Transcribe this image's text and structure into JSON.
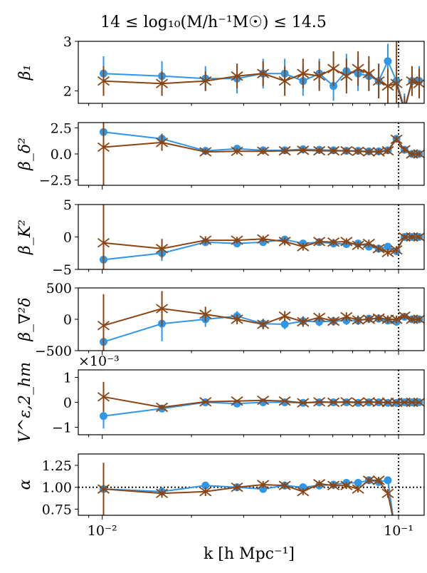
{
  "chart_data": {
    "title": "14 ≤ log₁₀(M/h⁻¹M☉) ≤ 14.5",
    "xlabel": "k [h Mpc⁻¹]",
    "xscale": "log",
    "xlim": [
      0.0083,
      0.122
    ],
    "x_ticks": [
      {
        "value": 0.01,
        "label": "10⁻²"
      },
      {
        "value": 0.1,
        "label": "10⁻¹"
      }
    ],
    "vline_x": 0.1,
    "series_styles": [
      {
        "name": "series A",
        "color": "#2f96e8",
        "marker": "circle"
      },
      {
        "name": "series B",
        "color": "#8b4513",
        "marker": "x"
      }
    ],
    "panels": [
      {
        "ylabel": "β₁",
        "ylim": [
          1.75,
          3.0
        ],
        "yticks": [
          {
            "v": 2,
            "l": "2"
          },
          {
            "v": 3,
            "l": "3"
          }
        ],
        "series": [
          {
            "name": "series A",
            "x": [
              0.0101,
              0.0159,
              0.0223,
              0.0285,
              0.0349,
              0.0413,
              0.0476,
              0.054,
              0.0603,
              0.0667,
              0.073,
              0.0794,
              0.0857,
              0.092,
              0.0984,
              0.1047,
              0.111,
              0.1174
            ],
            "y": [
              2.35,
              2.3,
              2.25,
              2.25,
              2.35,
              2.35,
              2.2,
              2.35,
              2.1,
              2.4,
              2.35,
              2.3,
              2.2,
              2.6,
              2.2,
              1.65,
              2.2,
              2.2
            ],
            "err": [
              0.35,
              0.3,
              0.25,
              0.3,
              0.3,
              0.3,
              0.3,
              0.3,
              0.3,
              0.35,
              0.35,
              0.3,
              0.35,
              0.35,
              0.35,
              0.3,
              0.3,
              0.3
            ]
          },
          {
            "name": "series B",
            "x": [
              0.0101,
              0.0159,
              0.0223,
              0.0285,
              0.0349,
              0.0413,
              0.0476,
              0.054,
              0.0603,
              0.0667,
              0.073,
              0.0794,
              0.0857,
              0.092,
              0.0984,
              0.1047,
              0.111,
              0.1174
            ],
            "y": [
              2.2,
              2.15,
              2.2,
              2.3,
              2.35,
              2.2,
              2.35,
              2.3,
              2.45,
              2.3,
              2.45,
              2.35,
              2.2,
              2.1,
              2.15,
              1.6,
              2.2,
              2.15
            ],
            "err": [
              0.3,
              0.25,
              0.2,
              0.25,
              0.25,
              0.3,
              0.3,
              0.3,
              0.35,
              0.35,
              0.35,
              0.35,
              0.35,
              0.35,
              1.2,
              0.3,
              0.3,
              0.3
            ]
          }
        ]
      },
      {
        "ylabel": "β_δ²",
        "ylim": [
          -3.0,
          3.0
        ],
        "yticks": [
          {
            "v": 2.5,
            "l": "2.5"
          },
          {
            "v": 0,
            "l": "0.0"
          },
          {
            "v": -2.5,
            "l": "−2.5"
          }
        ],
        "series": [
          {
            "name": "series A",
            "x": [
              0.0101,
              0.0159,
              0.0223,
              0.0285,
              0.0349,
              0.0413,
              0.0476,
              0.054,
              0.0603,
              0.0667,
              0.073,
              0.0794,
              0.0857,
              0.092,
              0.0984,
              0.1047,
              0.111,
              0.1174
            ],
            "y": [
              2.1,
              1.45,
              0.3,
              0.5,
              0.35,
              0.35,
              0.45,
              0.4,
              0.35,
              0.3,
              0.3,
              0.25,
              0.25,
              0.35,
              1.45,
              0.4,
              0.0,
              0.0
            ],
            "err": [
              0.6,
              0.5,
              0.3,
              0.25,
              0.25,
              0.25,
              0.25,
              0.25,
              0.25,
              0.25,
              0.25,
              0.25,
              0.3,
              0.3,
              0.3,
              0.3,
              0.3,
              0.3
            ]
          },
          {
            "name": "series B",
            "x": [
              0.0101,
              0.0159,
              0.0223,
              0.0285,
              0.0349,
              0.0413,
              0.0476,
              0.054,
              0.0603,
              0.0667,
              0.073,
              0.0794,
              0.0857,
              0.092,
              0.0984,
              0.1047,
              0.111,
              0.1174
            ],
            "y": [
              0.65,
              1.1,
              0.2,
              0.25,
              0.25,
              0.3,
              0.35,
              0.3,
              0.3,
              0.3,
              0.25,
              0.2,
              0.2,
              0.3,
              1.4,
              0.4,
              0.0,
              0.0
            ],
            "err": [
              4.0,
              0.8,
              0.3,
              0.3,
              0.3,
              0.3,
              0.3,
              0.3,
              0.3,
              0.3,
              0.3,
              0.3,
              0.3,
              0.3,
              0.3,
              0.3,
              0.3,
              0.3
            ]
          }
        ]
      },
      {
        "ylabel": "β_K²",
        "ylim": [
          -5.0,
          5.0
        ],
        "yticks": [
          {
            "v": 5,
            "l": "5"
          },
          {
            "v": 0,
            "l": "0"
          },
          {
            "v": -5,
            "l": "−5"
          }
        ],
        "series": [
          {
            "name": "series A",
            "x": [
              0.0101,
              0.0159,
              0.0223,
              0.0285,
              0.0349,
              0.0413,
              0.0476,
              0.054,
              0.0603,
              0.0667,
              0.073,
              0.0794,
              0.0857,
              0.092,
              0.0984,
              0.1047,
              0.111,
              0.1174
            ],
            "y": [
              -3.5,
              -2.5,
              -0.8,
              -1.0,
              -0.8,
              -0.4,
              -1.0,
              -0.8,
              -1.0,
              -1.1,
              -1.0,
              -1.5,
              -1.8,
              -1.5,
              -2.2,
              0.0,
              0.0,
              0.0
            ],
            "err": [
              5.0,
              1.2,
              0.6,
              0.5,
              0.5,
              0.5,
              0.5,
              0.5,
              0.5,
              0.5,
              0.5,
              0.5,
              0.5,
              0.5,
              0.5,
              0.4,
              0.4,
              0.4
            ]
          },
          {
            "name": "series B",
            "x": [
              0.0101,
              0.0159,
              0.0223,
              0.0285,
              0.0349,
              0.0413,
              0.0476,
              0.054,
              0.0603,
              0.0667,
              0.073,
              0.0794,
              0.0857,
              0.092,
              0.0984,
              0.1047,
              0.111,
              0.1174
            ],
            "y": [
              -0.9,
              -1.8,
              -0.5,
              -0.5,
              -0.3,
              -0.7,
              -1.5,
              -0.7,
              -0.8,
              -0.7,
              -1.3,
              -1.0,
              -1.8,
              -2.4,
              -2.0,
              0.0,
              0.0,
              0.0
            ],
            "err": [
              6.0,
              1.5,
              0.6,
              0.5,
              0.5,
              0.6,
              0.6,
              0.5,
              0.5,
              0.5,
              0.6,
              0.6,
              0.6,
              0.6,
              0.6,
              0.4,
              0.4,
              0.4
            ]
          }
        ]
      },
      {
        "ylabel": "β_∇²δ",
        "ylim": [
          -500,
          500
        ],
        "yticks": [
          {
            "v": 500,
            "l": "500"
          },
          {
            "v": 0,
            "l": "0"
          },
          {
            "v": -500,
            "l": "−500"
          }
        ],
        "series": [
          {
            "name": "series A",
            "x": [
              0.0101,
              0.0159,
              0.0223,
              0.0285,
              0.0349,
              0.0413,
              0.0476,
              0.054,
              0.0603,
              0.0667,
              0.073,
              0.0794,
              0.0857,
              0.092,
              0.0984,
              0.1047,
              0.111,
              0.1174
            ],
            "y": [
              -360,
              -70,
              0,
              50,
              -70,
              -80,
              -30,
              -40,
              -30,
              -20,
              -20,
              10,
              10,
              -20,
              -40,
              40,
              0,
              0
            ],
            "err": [
              140,
              280,
              120,
              80,
              80,
              80,
              80,
              70,
              70,
              70,
              70,
              60,
              60,
              60,
              60,
              50,
              50,
              50
            ]
          },
          {
            "name": "series B",
            "x": [
              0.0101,
              0.0159,
              0.0223,
              0.0285,
              0.0349,
              0.0413,
              0.0476,
              0.054,
              0.0603,
              0.0667,
              0.073,
              0.0794,
              0.0857,
              0.092,
              0.0984,
              0.1047,
              0.111,
              0.1174
            ],
            "y": [
              -100,
              170,
              80,
              0,
              -80,
              50,
              -40,
              30,
              -30,
              40,
              -10,
              0,
              20,
              0,
              0,
              50,
              0,
              0
            ],
            "err": [
              500,
              280,
              120,
              80,
              80,
              80,
              80,
              70,
              70,
              70,
              70,
              60,
              60,
              60,
              60,
              50,
              50,
              50
            ]
          }
        ]
      },
      {
        "ylabel": "V^ε,2_hm",
        "offset_label": "×10⁻³",
        "ylim": [
          -1.3,
          1.3
        ],
        "yticks": [
          {
            "v": 1,
            "l": "1"
          },
          {
            "v": 0,
            "l": "0"
          },
          {
            "v": -1,
            "l": "−1"
          }
        ],
        "series": [
          {
            "name": "series A",
            "x": [
              0.0101,
              0.0159,
              0.0223,
              0.0285,
              0.0349,
              0.0413,
              0.0476,
              0.054,
              0.0603,
              0.0667,
              0.073,
              0.0794,
              0.0857,
              0.092,
              0.0984,
              0.1047,
              0.111,
              0.1174
            ],
            "y": [
              -0.55,
              -0.25,
              0.0,
              -0.05,
              0.0,
              0.0,
              -0.02,
              0.0,
              0.0,
              0.0,
              -0.02,
              0.0,
              0.0,
              -0.02,
              -0.02,
              0.0,
              0.0,
              0.0
            ],
            "err": [
              0.5,
              0.1,
              0.05,
              0.05,
              0.05,
              0.05,
              0.05,
              0.05,
              0.05,
              0.05,
              0.05,
              0.05,
              0.05,
              0.05,
              0.05,
              0.05,
              0.05,
              0.05
            ]
          },
          {
            "name": "series B",
            "x": [
              0.0101,
              0.0159,
              0.0223,
              0.0285,
              0.0349,
              0.0413,
              0.0476,
              0.054,
              0.0603,
              0.0667,
              0.073,
              0.0794,
              0.0857,
              0.092,
              0.0984,
              0.1047,
              0.111,
              0.1174
            ],
            "y": [
              0.22,
              -0.2,
              0.02,
              0.05,
              0.08,
              0.05,
              -0.02,
              0.02,
              0.0,
              0.02,
              0.0,
              0.02,
              0.0,
              0.0,
              0.0,
              0.0,
              0.0,
              0.0
            ],
            "err": [
              0.6,
              0.1,
              0.05,
              0.05,
              0.05,
              0.05,
              0.05,
              0.05,
              0.05,
              0.05,
              0.05,
              0.05,
              0.05,
              0.05,
              0.05,
              0.05,
              0.05,
              0.05
            ]
          }
        ]
      },
      {
        "ylabel": "α",
        "ylim": [
          0.68,
          1.38
        ],
        "hline_y": 1.0,
        "yticks": [
          {
            "v": 1.25,
            "l": "1.25"
          },
          {
            "v": 1.0,
            "l": "1.00"
          },
          {
            "v": 0.75,
            "l": "0.75"
          }
        ],
        "series": [
          {
            "name": "series A",
            "x": [
              0.0101,
              0.0159,
              0.0223,
              0.0285,
              0.0349,
              0.0413,
              0.0476,
              0.054,
              0.0603,
              0.0667,
              0.073,
              0.0794,
              0.0857,
              0.092,
              0.0964
            ],
            "y": [
              0.98,
              0.95,
              1.02,
              1.0,
              0.98,
              1.02,
              1.0,
              1.02,
              1.03,
              1.05,
              1.05,
              1.08,
              1.06,
              1.08,
              0.6
            ],
            "err": [
              0.05,
              0.05,
              0.04,
              0.03,
              0.03,
              0.03,
              0.03,
              0.03,
              0.03,
              0.03,
              0.03,
              0.03,
              0.04,
              0.04,
              0.04
            ]
          },
          {
            "name": "series B",
            "x": [
              0.0101,
              0.0159,
              0.0223,
              0.0285,
              0.0349,
              0.0413,
              0.0476,
              0.054,
              0.0603,
              0.0667,
              0.073,
              0.0794,
              0.0857,
              0.092,
              0.0964
            ],
            "y": [
              0.98,
              0.93,
              0.95,
              1.0,
              1.03,
              1.02,
              0.95,
              1.04,
              1.02,
              1.02,
              0.98,
              1.08,
              1.08,
              0.93,
              0.6
            ],
            "err": [
              0.3,
              0.05,
              0.05,
              0.04,
              0.04,
              0.04,
              0.04,
              0.04,
              0.04,
              0.04,
              0.04,
              0.04,
              0.04,
              0.05,
              0.05
            ]
          }
        ]
      }
    ]
  }
}
